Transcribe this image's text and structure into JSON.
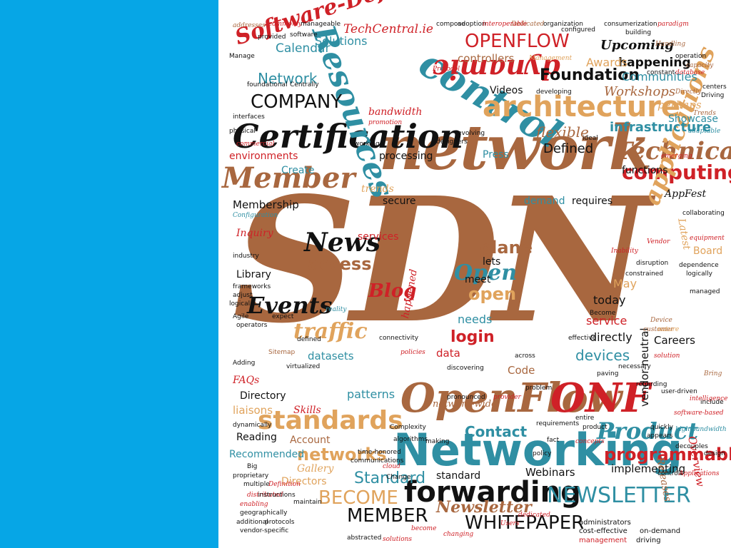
{
  "colors": {
    "side_bar": "#06a6e6",
    "brown": "#a8673f",
    "teal": "#2f8fa3",
    "red": "#cf2127",
    "tan": "#e0a35c",
    "black": "#111111"
  },
  "cloud": {
    "words": [
      {
        "t": "SDN",
        "c": "brown"
      },
      {
        "t": "network",
        "c": "brown"
      },
      {
        "t": "Networking",
        "c": "teal"
      },
      {
        "t": "Certification",
        "c": "black"
      },
      {
        "t": "OpenFlow",
        "c": "brown"
      },
      {
        "t": "control",
        "c": "teal"
      },
      {
        "t": "architecture",
        "c": "tan"
      },
      {
        "t": "Member",
        "c": "brown"
      },
      {
        "t": "Resources",
        "c": "teal"
      },
      {
        "t": "forwarding",
        "c": "black"
      },
      {
        "t": "standards",
        "c": "tan"
      },
      {
        "t": "ONF",
        "c": "red"
      },
      {
        "t": "Software-Defined",
        "c": "red"
      },
      {
        "t": "dynamic",
        "c": "red"
      },
      {
        "t": "OPENFLOW",
        "c": "red"
      },
      {
        "t": "Technical",
        "c": "brown"
      },
      {
        "t": "computing",
        "c": "red"
      },
      {
        "t": "Product",
        "c": "teal"
      },
      {
        "t": "applications",
        "c": "tan"
      },
      {
        "t": "NEWSLETTER",
        "c": "teal"
      },
      {
        "t": "WHITEPAPER",
        "c": "black"
      },
      {
        "t": "MEMBER",
        "c": "black"
      },
      {
        "t": "BECOME",
        "c": "tan"
      },
      {
        "t": "Events",
        "c": "black"
      },
      {
        "t": "News",
        "c": "black"
      },
      {
        "t": "COMPANY",
        "c": "black"
      },
      {
        "t": "traffic",
        "c": "tan"
      },
      {
        "t": "programmable",
        "c": "red"
      },
      {
        "t": "networks",
        "c": "tan"
      },
      {
        "t": "Newsletter",
        "c": "brown"
      },
      {
        "t": "Foundation",
        "c": "black"
      },
      {
        "t": "infrastructure",
        "c": "teal"
      },
      {
        "t": "Workshops",
        "c": "brown"
      },
      {
        "t": "Standard",
        "c": "teal"
      },
      {
        "t": "Open",
        "c": "teal"
      },
      {
        "t": "open",
        "c": "tan"
      },
      {
        "t": "plane",
        "c": "brown"
      },
      {
        "t": "access",
        "c": "brown"
      },
      {
        "t": "Blog",
        "c": "red"
      },
      {
        "t": "login",
        "c": "red"
      },
      {
        "t": "devices",
        "c": "teal"
      },
      {
        "t": "Defined",
        "c": "black"
      },
      {
        "t": "flexible",
        "c": "brown"
      },
      {
        "t": "Contact",
        "c": "teal"
      },
      {
        "t": "Network",
        "c": "teal"
      },
      {
        "t": "Solutions",
        "c": "teal"
      },
      {
        "t": "TechCentral.ie",
        "c": "red"
      },
      {
        "t": "Calendar",
        "c": "teal"
      },
      {
        "t": "controllers",
        "c": "brown"
      },
      {
        "t": "happening",
        "c": "black"
      },
      {
        "t": "Communities",
        "c": "teal"
      },
      {
        "t": "Awards",
        "c": "tan"
      },
      {
        "t": "Upcoming",
        "c": "black"
      },
      {
        "t": "Videos",
        "c": "black"
      },
      {
        "t": "perhaps",
        "c": "tan"
      },
      {
        "t": "Showcase",
        "c": "teal"
      },
      {
        "t": "bandwidth",
        "c": "red"
      },
      {
        "t": "environments",
        "c": "red"
      },
      {
        "t": "processing",
        "c": "black"
      },
      {
        "t": "Create",
        "c": "teal"
      },
      {
        "t": "trends",
        "c": "tan"
      },
      {
        "t": "Membership",
        "c": "black"
      },
      {
        "t": "secure",
        "c": "black"
      },
      {
        "t": "demand",
        "c": "teal"
      },
      {
        "t": "requires",
        "c": "black"
      },
      {
        "t": "functions",
        "c": "black"
      },
      {
        "t": "AppFest",
        "c": "black"
      },
      {
        "t": "Inquiry",
        "c": "red"
      },
      {
        "t": "Library",
        "c": "black"
      },
      {
        "t": "services",
        "c": "red"
      },
      {
        "t": "lets",
        "c": "black"
      },
      {
        "t": "meet",
        "c": "black"
      },
      {
        "t": "needs",
        "c": "teal"
      },
      {
        "t": "today",
        "c": "black"
      },
      {
        "t": "May",
        "c": "tan"
      },
      {
        "t": "directly",
        "c": "black"
      },
      {
        "t": "service",
        "c": "red"
      },
      {
        "t": "Careers",
        "c": "black"
      },
      {
        "t": "data",
        "c": "red"
      },
      {
        "t": "datasets",
        "c": "teal"
      },
      {
        "t": "patterns",
        "c": "teal"
      },
      {
        "t": "Code",
        "c": "brown"
      },
      {
        "t": "Directory",
        "c": "black"
      },
      {
        "t": "liaisons",
        "c": "tan"
      },
      {
        "t": "Skills",
        "c": "red"
      },
      {
        "t": "Reading",
        "c": "black"
      },
      {
        "t": "Account",
        "c": "brown"
      },
      {
        "t": "Recommended",
        "c": "teal"
      },
      {
        "t": "Gallery",
        "c": "tan"
      },
      {
        "t": "Directors",
        "c": "tan"
      },
      {
        "t": "Webinars",
        "c": "black"
      },
      {
        "t": "implementing",
        "c": "black"
      },
      {
        "t": "standard",
        "c": "black"
      },
      {
        "t": "Events",
        "c": "black"
      },
      {
        "t": "vendor-neutral",
        "c": "black"
      },
      {
        "t": "Overview",
        "c": "red"
      },
      {
        "t": "Releases",
        "c": "brown"
      },
      {
        "t": "Board",
        "c": "tan"
      },
      {
        "t": "Latest",
        "c": "tan"
      },
      {
        "t": "network-wide",
        "c": "brown"
      },
      {
        "t": "FAQs",
        "c": "red"
      },
      {
        "t": "happened",
        "c": "red"
      },
      {
        "t": "Press",
        "c": "teal"
      },
      {
        "t": "Sitemap",
        "c": "brown"
      },
      {
        "t": "Agile",
        "c": "black"
      },
      {
        "t": "user-driven",
        "c": "black"
      },
      {
        "t": "intelligence",
        "c": "red"
      },
      {
        "t": "software-based",
        "c": "red"
      },
      {
        "t": "cost-effective",
        "c": "black"
      },
      {
        "t": "on-demand",
        "c": "black"
      },
      {
        "t": "management",
        "c": "red"
      },
      {
        "t": "driving",
        "c": "black"
      },
      {
        "t": "administrators",
        "c": "black"
      },
      {
        "t": "abstracted",
        "c": "black"
      },
      {
        "t": "solutions",
        "c": "red"
      },
      {
        "t": "changing",
        "c": "red"
      },
      {
        "t": "vendor-specific",
        "c": "black"
      },
      {
        "t": "protocols",
        "c": "black"
      },
      {
        "t": "geographically",
        "c": "black"
      },
      {
        "t": "distributed",
        "c": "red"
      },
      {
        "t": "proprietary",
        "c": "black"
      },
      {
        "t": "multiple",
        "c": "black"
      },
      {
        "t": "Definition",
        "c": "red"
      },
      {
        "t": "communications",
        "c": "black"
      },
      {
        "t": "time-honored",
        "c": "black"
      },
      {
        "t": "cloud",
        "c": "red"
      },
      {
        "t": "requirements",
        "c": "black"
      },
      {
        "t": "Dedicated",
        "c": "brown"
      },
      {
        "t": "organization",
        "c": "black"
      },
      {
        "t": "configured",
        "c": "black"
      },
      {
        "t": "consumerization",
        "c": "black"
      },
      {
        "t": "paradigm",
        "c": "red"
      },
      {
        "t": "Handling",
        "c": "brown"
      },
      {
        "t": "operation",
        "c": "black"
      },
      {
        "t": "capacity",
        "c": "brown"
      },
      {
        "t": "constant",
        "c": "black"
      },
      {
        "t": "database",
        "c": "red"
      },
      {
        "t": "centers",
        "c": "black"
      },
      {
        "t": "Driving",
        "c": "black"
      },
      {
        "t": "Directly",
        "c": "brown"
      },
      {
        "t": "Trends",
        "c": "brown"
      },
      {
        "t": "adaptable",
        "c": "teal"
      },
      {
        "t": "emerging",
        "c": "red"
      },
      {
        "t": "collaborating",
        "c": "black"
      },
      {
        "t": "equipment",
        "c": "red"
      },
      {
        "t": "dependence",
        "c": "black"
      },
      {
        "t": "logically",
        "c": "black"
      },
      {
        "t": "Inability",
        "c": "red"
      },
      {
        "t": "Vendor",
        "c": "red"
      },
      {
        "t": "disruption",
        "c": "black"
      },
      {
        "t": "constrained",
        "c": "black"
      },
      {
        "t": "managed",
        "c": "black"
      },
      {
        "t": "Become",
        "c": "black"
      },
      {
        "t": "Device",
        "c": "brown"
      },
      {
        "t": "customer",
        "c": "brown"
      },
      {
        "t": "nature",
        "c": "tan"
      },
      {
        "t": "solution",
        "c": "red"
      },
      {
        "t": "necessary",
        "c": "black"
      },
      {
        "t": "paving",
        "c": "black"
      },
      {
        "t": "regarding",
        "c": "black"
      },
      {
        "t": "Bring",
        "c": "brown"
      },
      {
        "t": "include",
        "c": "black"
      },
      {
        "t": "quickly",
        "c": "black"
      },
      {
        "t": "appears",
        "c": "black"
      },
      {
        "t": "decouples",
        "c": "black"
      },
      {
        "t": "design",
        "c": "black"
      },
      {
        "t": "controls",
        "c": "black"
      },
      {
        "t": "Applications",
        "c": "red"
      },
      {
        "t": "high-bandwidth",
        "c": "teal"
      },
      {
        "t": "product",
        "c": "black"
      },
      {
        "t": "concepts",
        "c": "red"
      },
      {
        "t": "provider",
        "c": "red"
      },
      {
        "t": "pronounced",
        "c": "black"
      },
      {
        "t": "Complexity",
        "c": "black"
      },
      {
        "t": "dynamically",
        "c": "black"
      },
      {
        "t": "Configuration",
        "c": "teal"
      },
      {
        "t": "addresses",
        "c": "brown"
      },
      {
        "t": "commonly",
        "c": "red"
      },
      {
        "t": "manageable",
        "c": "black"
      },
      {
        "t": "compose",
        "c": "black"
      },
      {
        "t": "adoption",
        "c": "black"
      },
      {
        "t": "interoperable",
        "c": "red"
      },
      {
        "t": "provided",
        "c": "black"
      },
      {
        "t": "software",
        "c": "black"
      },
      {
        "t": "promotion",
        "c": "red"
      },
      {
        "t": "foundational",
        "c": "black"
      },
      {
        "t": "Centrally",
        "c": "black"
      },
      {
        "t": "Protocol",
        "c": "red"
      },
      {
        "t": "Management",
        "c": "tan"
      },
      {
        "t": "building",
        "c": "black"
      },
      {
        "t": "Manage",
        "c": "black"
      },
      {
        "t": "developing",
        "c": "black"
      },
      {
        "t": "ideal",
        "c": "black"
      },
      {
        "t": "designers",
        "c": "black"
      },
      {
        "t": "working",
        "c": "black"
      },
      {
        "t": "evolving",
        "c": "black"
      },
      {
        "t": "commercial",
        "c": "red"
      },
      {
        "t": "interfaces",
        "c": "black"
      },
      {
        "t": "physical",
        "c": "black"
      },
      {
        "t": "industry",
        "c": "black"
      },
      {
        "t": "frameworks",
        "c": "black"
      },
      {
        "t": "adjust",
        "c": "black"
      },
      {
        "t": "logical",
        "c": "black"
      },
      {
        "t": "operators",
        "c": "black"
      },
      {
        "t": "expect",
        "c": "black"
      },
      {
        "t": "reality",
        "c": "black"
      },
      {
        "t": "defined",
        "c": "teal"
      },
      {
        "t": "connectivity",
        "c": "black"
      },
      {
        "t": "policies",
        "c": "black"
      },
      {
        "t": "virtualized",
        "c": "red"
      },
      {
        "t": "discovering",
        "c": "black"
      },
      {
        "t": "across",
        "c": "black"
      },
      {
        "t": "problem",
        "c": "black"
      },
      {
        "t": "effective",
        "c": "black"
      },
      {
        "t": "Adding",
        "c": "black"
      },
      {
        "t": "Users",
        "c": "black"
      },
      {
        "t": "dedicated",
        "c": "red"
      },
      {
        "t": "become",
        "c": "red"
      },
      {
        "t": "maintain",
        "c": "red"
      },
      {
        "t": "enabling",
        "c": "black"
      },
      {
        "t": "instructions",
        "c": "red"
      },
      {
        "t": "additional",
        "c": "black"
      },
      {
        "t": "Change",
        "c": "black"
      },
      {
        "t": "making",
        "c": "black"
      },
      {
        "t": "algorithms",
        "c": "black"
      },
      {
        "t": "fact",
        "c": "black"
      },
      {
        "t": "policy",
        "c": "black"
      },
      {
        "t": "entire",
        "c": "black"
      },
      {
        "t": "Big",
        "c": "black"
      },
      {
        "t": "today's",
        "c": "black"
      }
    ]
  }
}
